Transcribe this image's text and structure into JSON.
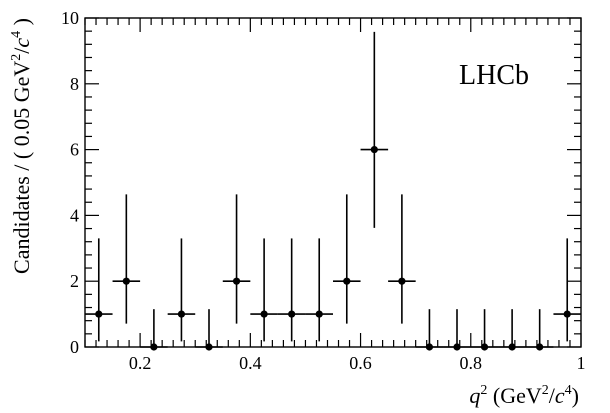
{
  "chart_data": {
    "type": "scatter",
    "title": "",
    "watermark": "LHCb",
    "xlabel": {
      "q": "q",
      "sup": "2",
      "unit_pre": "(GeV",
      "unit_sup1": "2",
      "unit_mid": "/",
      "unit_c": "c",
      "unit_sup2": "4",
      "unit_post": ")"
    },
    "ylabel": {
      "pre": "Candidates / ( 0.05 GeV",
      "sup1": "2",
      "mid": "/",
      "c": "c",
      "sup2": "4",
      "post": ")"
    },
    "xlim": [
      0.1,
      1.0
    ],
    "ylim": [
      0,
      10
    ],
    "x_ticks": [
      0.2,
      0.4,
      0.6,
      0.8,
      1.0
    ],
    "x_tick_labels": [
      "0.2",
      "0.4",
      "0.6",
      "0.8",
      "1"
    ],
    "y_ticks": [
      0,
      2,
      4,
      6,
      8,
      10
    ],
    "y_tick_labels": [
      "0",
      "2",
      "4",
      "6",
      "8",
      "10"
    ],
    "bin_width": 0.05,
    "series": [
      {
        "x": [
          0.125,
          0.175,
          0.225,
          0.275,
          0.325,
          0.375,
          0.425,
          0.475,
          0.525,
          0.575,
          0.625,
          0.675,
          0.725,
          0.775,
          0.825,
          0.875,
          0.925,
          0.975
        ],
        "y": [
          1,
          2,
          0,
          1,
          0,
          2,
          1,
          1,
          1,
          2,
          6,
          2,
          0,
          0,
          0,
          0,
          0,
          1
        ],
        "y_err_low": [
          0.83,
          1.29,
          0,
          0.83,
          0,
          1.29,
          0.83,
          0.83,
          0.83,
          1.29,
          2.38,
          1.29,
          0,
          0,
          0,
          0,
          0,
          0.83
        ],
        "y_err_high": [
          2.3,
          2.64,
          1.15,
          2.3,
          1.15,
          2.64,
          2.3,
          2.3,
          2.3,
          2.64,
          3.58,
          2.64,
          1.15,
          1.15,
          1.15,
          1.15,
          1.15,
          2.3
        ]
      }
    ]
  }
}
